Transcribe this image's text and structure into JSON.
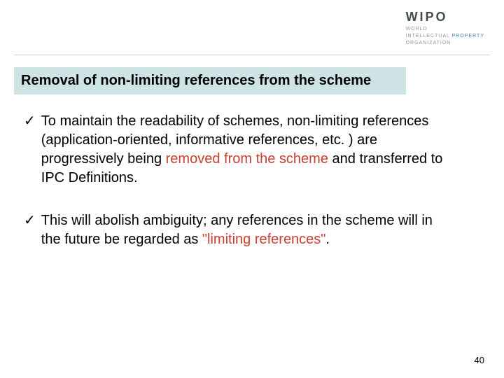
{
  "logo": {
    "main": "WIPO",
    "line1_a": "WORLD",
    "line2_a": "INTELLECTUAL ",
    "line2_b": "PROPERTY",
    "line3_a": "ORGANIZATION"
  },
  "title": "Removal of non-limiting references from the scheme",
  "bullets": [
    {
      "pre": "To maintain the readability of schemes, non-limiting references (application-oriented, informative references, etc. ) are progressively being ",
      "hl": "removed from the scheme ",
      "post": "and transferred to IPC Definitions."
    },
    {
      "pre": "This will abolish ambiguity; any references in the scheme will in the future be regarded as ",
      "hl": "\"limiting references\"",
      "post": "."
    }
  ],
  "page_number": "40",
  "colors": {
    "title_bg": "#cee4e4",
    "highlight": "#c93f2f",
    "logo_accent": "#3a7f9c",
    "logo_main": "#444b50"
  }
}
